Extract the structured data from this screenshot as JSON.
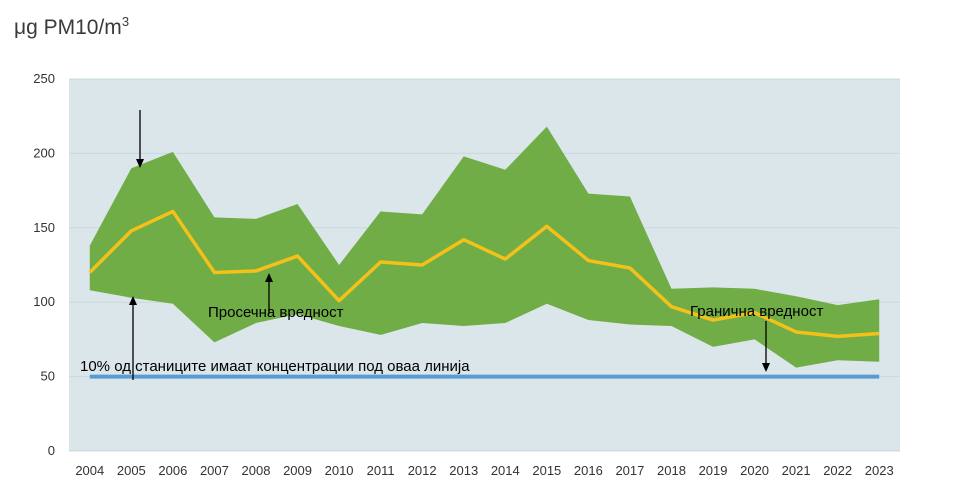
{
  "unit": {
    "prefix": "μg PM10/m",
    "sup": "3"
  },
  "colors": {
    "plot_bg": "#dae6ea",
    "band": "#70ad47",
    "mean": "#f3c11a",
    "threshold": "#5b9bd5",
    "grid": "#c9d8da"
  },
  "chart_data": {
    "type": "area",
    "title": "",
    "xlabel": "",
    "ylabel": "μg PM10/m3",
    "ylim": [
      0,
      250
    ],
    "yticks": [
      0,
      50,
      100,
      150,
      200,
      250
    ],
    "grid": true,
    "x": [
      "2004",
      "2005",
      "2006",
      "2007",
      "2008",
      "2009",
      "2010",
      "2011",
      "2012",
      "2013",
      "2014",
      "2015",
      "2016",
      "2017",
      "2018",
      "2019",
      "2020",
      "2021",
      "2022",
      "2023"
    ],
    "series": [
      {
        "name": "upper",
        "values": [
          138,
          190,
          201,
          157,
          156,
          166,
          125,
          161,
          159,
          198,
          189,
          218,
          173,
          171,
          109,
          110,
          109,
          104,
          98,
          102
        ]
      },
      {
        "name": "lower",
        "values": [
          108,
          103,
          99,
          73,
          86,
          92,
          84,
          78,
          86,
          84,
          86,
          99,
          88,
          85,
          84,
          70,
          75,
          56,
          61,
          60
        ]
      },
      {
        "name": "Просечна вредност",
        "values": [
          120,
          148,
          161,
          120,
          121,
          131,
          101,
          127,
          125,
          142,
          129,
          151,
          128,
          123,
          97,
          88,
          93,
          80,
          77,
          79
        ]
      },
      {
        "name": "Гранична вредност",
        "values": [
          50,
          50,
          50,
          50,
          50,
          50,
          50,
          50,
          50,
          50,
          50,
          50,
          50,
          50,
          50,
          50,
          50,
          50,
          50,
          50
        ]
      }
    ],
    "annotations": {
      "mean_label": "Просечна вредност",
      "limit_label": "Гранична вредност",
      "threshold_label": "10% од станиците имаат концентрации под оваа линија"
    }
  }
}
